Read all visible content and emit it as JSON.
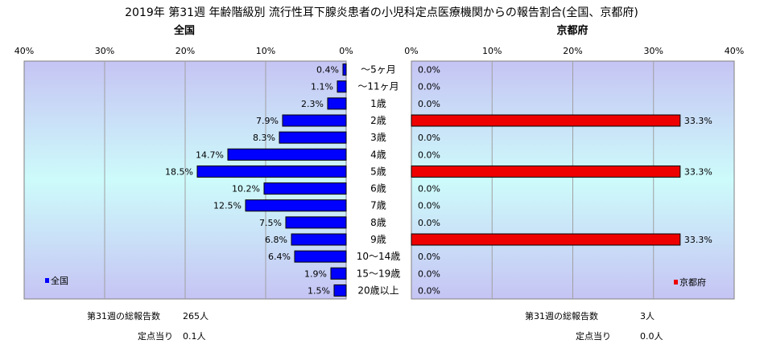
{
  "title": "2019年 第31週 年齢階級別 流行性耳下腺炎患者の小児科定点医療機関からの報告割合(全国、京都府)",
  "chart_data": [
    {
      "type": "bar",
      "orientation": "horizontal-reversed",
      "title": "全国",
      "categories": [
        "～5ヶ月",
        "～11ヶ月",
        "1歳",
        "2歳",
        "3歳",
        "4歳",
        "5歳",
        "6歳",
        "7歳",
        "8歳",
        "9歳",
        "10～14歳",
        "15～19歳",
        "20歳以上"
      ],
      "series": [
        {
          "name": "全国",
          "values": [
            0.4,
            1.1,
            2.3,
            7.9,
            8.3,
            14.7,
            18.5,
            10.2,
            12.5,
            7.5,
            6.8,
            6.4,
            1.9,
            1.5
          ]
        }
      ],
      "value_labels": [
        "0.4%",
        "1.1%",
        "2.3%",
        "7.9%",
        "8.3%",
        "14.7%",
        "18.5%",
        "10.2%",
        "12.5%",
        "7.5%",
        "6.8%",
        "6.4%",
        "1.9%",
        "1.5%"
      ],
      "xlim": [
        0,
        40
      ],
      "ticks": [
        "40%",
        "30%",
        "20%",
        "10%",
        "0%"
      ],
      "legend": "bottom-left",
      "bar_color": "#0000ff"
    },
    {
      "type": "bar",
      "orientation": "horizontal",
      "title": "京都府",
      "categories": [
        "～5ヶ月",
        "～11ヶ月",
        "1歳",
        "2歳",
        "3歳",
        "4歳",
        "5歳",
        "6歳",
        "7歳",
        "8歳",
        "9歳",
        "10～14歳",
        "15～19歳",
        "20歳以上"
      ],
      "series": [
        {
          "name": "京都府",
          "values": [
            0,
            0,
            0,
            33.3,
            0,
            0,
            33.3,
            0,
            0,
            0,
            33.3,
            0,
            0,
            0
          ]
        }
      ],
      "value_labels": [
        "0.0%",
        "0.0%",
        "0.0%",
        "33.3%",
        "0.0%",
        "0.0%",
        "33.3%",
        "0.0%",
        "0.0%",
        "0.0%",
        "33.3%",
        "0.0%",
        "0.0%",
        "0.0%"
      ],
      "xlim": [
        0,
        40
      ],
      "ticks": [
        "0%",
        "10%",
        "20%",
        "30%",
        "40%"
      ],
      "legend": "bottom-right",
      "bar_color": "#ee0000"
    }
  ],
  "footer": {
    "national": {
      "total_label": "第31週の総報告数",
      "total_value": "265人",
      "per_label": "定点当り",
      "per_value": "0.1人"
    },
    "kyoto": {
      "total_label": "第31週の総報告数",
      "total_value": "3人",
      "per_label": "定点当り",
      "per_value": "0.0人"
    }
  }
}
